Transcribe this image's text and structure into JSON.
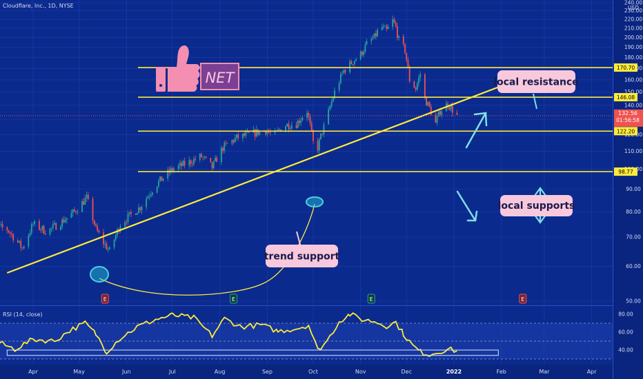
{
  "header": {
    "symbol": "Cloudflare, Inc., 1D, NYSE"
  },
  "logo": {
    "ticker": "NET"
  },
  "price_axis": {
    "unit": "USD"
  },
  "current_price": {
    "price": "132.56",
    "countdown": "01:56:58"
  },
  "rsi_panel": {
    "title": "RSI (14, close)"
  },
  "annotations": {
    "resistance_label": "local resistance",
    "supports_label": "local supports",
    "trend_label": "trend support"
  },
  "earnings_marker": {
    "label": "E"
  },
  "colors": {
    "background": "#0b2a8e",
    "level_line": "#ffeb3b",
    "up_candle": "#26a69a",
    "down_candle": "#ef5350",
    "rsi_line": "#ffeb3b",
    "label_bg": "#f8c8dc",
    "arrow": "#7fe0e8",
    "thumb": "#f48fb1"
  },
  "chart_data": [
    {
      "type": "candlestick",
      "title": "Cloudflare, Inc., 1D, NYSE",
      "ylim": [
        50,
        240
      ],
      "y_ticks": [
        50,
        60,
        70,
        80,
        90,
        100,
        110,
        120,
        130,
        140,
        150,
        160,
        170,
        180,
        190,
        200,
        210,
        220,
        230,
        240
      ],
      "x_ticks": [
        "Apr",
        "May",
        "Jun",
        "Jul",
        "Aug",
        "Sep",
        "Oct",
        "Nov",
        "Dec",
        "2022",
        "Feb",
        "Mar",
        "Apr"
      ],
      "x_ticks_last_visible": 9,
      "x_dates": [
        "2021-04-01",
        "2021-05-01",
        "2021-06-01",
        "2021-07-01",
        "2021-08-01",
        "2021-09-01",
        "2021-10-01",
        "2021-11-01",
        "2021-12-01",
        "2022-01-01",
        "2022-02-01",
        "2022-03-01",
        "2022-04-01"
      ],
      "close_path": [
        [
          "2021-03-01",
          75
        ],
        [
          "2021-03-15",
          73
        ],
        [
          "2021-03-25",
          66
        ],
        [
          "2021-04-01",
          75
        ],
        [
          "2021-04-10",
          72
        ],
        [
          "2021-04-20",
          76
        ],
        [
          "2021-04-28",
          80
        ],
        [
          "2021-05-06",
          86
        ],
        [
          "2021-05-12",
          73
        ],
        [
          "2021-05-17",
          68
        ],
        [
          "2021-05-21",
          65
        ],
        [
          "2021-05-28",
          75
        ],
        [
          "2021-06-10",
          82
        ],
        [
          "2021-06-20",
          92
        ],
        [
          "2021-07-01",
          100
        ],
        [
          "2021-07-10",
          103
        ],
        [
          "2021-07-20",
          107
        ],
        [
          "2021-07-27",
          101
        ],
        [
          "2021-08-03",
          112
        ],
        [
          "2021-08-12",
          118
        ],
        [
          "2021-08-20",
          120
        ],
        [
          "2021-08-31",
          123
        ],
        [
          "2021-09-05",
          119
        ],
        [
          "2021-09-12",
          126
        ],
        [
          "2021-09-20",
          127
        ],
        [
          "2021-09-27",
          136
        ],
        [
          "2021-10-01",
          115
        ],
        [
          "2021-10-04",
          112
        ],
        [
          "2021-10-06",
          119
        ],
        [
          "2021-10-10",
          131
        ],
        [
          "2021-10-15",
          150
        ],
        [
          "2021-10-21",
          168
        ],
        [
          "2021-10-26",
          175
        ],
        [
          "2021-11-01",
          183
        ],
        [
          "2021-11-05",
          193
        ],
        [
          "2021-11-10",
          200
        ],
        [
          "2021-11-14",
          212
        ],
        [
          "2021-11-18",
          207
        ],
        [
          "2021-11-22",
          218
        ],
        [
          "2021-11-24",
          211
        ],
        [
          "2021-11-26",
          197
        ],
        [
          "2021-11-30",
          187
        ],
        [
          "2021-12-03",
          160
        ],
        [
          "2021-12-07",
          153
        ],
        [
          "2021-12-10",
          165
        ],
        [
          "2021-12-13",
          145
        ],
        [
          "2021-12-16",
          138
        ],
        [
          "2021-12-20",
          127
        ],
        [
          "2021-12-23",
          136
        ],
        [
          "2021-12-28",
          141
        ],
        [
          "2022-01-03",
          132.56
        ]
      ],
      "current_price": 132.56
    },
    {
      "type": "line",
      "title": "RSI (14, close)",
      "ylim": [
        33,
        82
      ],
      "y_ticks": [
        40,
        60,
        80
      ],
      "reference_levels": [
        30,
        50,
        70
      ],
      "series": [
        {
          "values": [
            [
              "2021-03-01",
              46
            ],
            [
              "2021-03-10",
              48
            ],
            [
              "2021-03-20",
              41
            ],
            [
              "2021-04-01",
              52
            ],
            [
              "2021-04-15",
              50
            ],
            [
              "2021-04-25",
              62
            ],
            [
              "2021-05-05",
              70
            ],
            [
              "2021-05-12",
              58
            ],
            [
              "2021-05-19",
              38
            ],
            [
              "2021-05-27",
              52
            ],
            [
              "2021-06-08",
              66
            ],
            [
              "2021-06-20",
              74
            ],
            [
              "2021-07-01",
              79
            ],
            [
              "2021-07-15",
              76
            ],
            [
              "2021-07-27",
              56
            ],
            [
              "2021-08-04",
              75
            ],
            [
              "2021-08-15",
              66
            ],
            [
              "2021-08-28",
              68
            ],
            [
              "2021-09-08",
              61
            ],
            [
              "2021-09-20",
              64
            ],
            [
              "2021-09-28",
              68
            ],
            [
              "2021-10-04",
              40
            ],
            [
              "2021-10-10",
              50
            ],
            [
              "2021-10-18",
              72
            ],
            [
              "2021-10-25",
              80
            ],
            [
              "2021-11-02",
              74
            ],
            [
              "2021-11-10",
              72
            ],
            [
              "2021-11-18",
              67
            ],
            [
              "2021-11-24",
              71
            ],
            [
              "2021-11-29",
              58
            ],
            [
              "2021-12-05",
              45
            ],
            [
              "2021-12-10",
              38
            ],
            [
              "2021-12-16",
              35
            ],
            [
              "2021-12-22",
              38
            ],
            [
              "2021-12-28",
              41
            ],
            [
              "2022-01-03",
              39
            ]
          ]
        }
      ],
      "highlight_band": [
        "2021-03-15",
        "2022-01-30",
        34,
        40
      ]
    }
  ],
  "drawings": {
    "horizontal_levels": [
      {
        "value": 170.7,
        "label": "170.70"
      },
      {
        "value": 146.08,
        "label": "146.08"
      },
      {
        "value": 122.2,
        "label": "122.20"
      },
      {
        "value": 98.77,
        "label": "98.77"
      }
    ],
    "trendline": {
      "from": [
        "2021-03-15",
        58
      ],
      "to": [
        "2022-01-30",
        154
      ]
    },
    "earnings_dates": [
      "2021-05-18",
      "2021-08-10",
      "2021-11-08",
      "2022-02-15"
    ]
  }
}
